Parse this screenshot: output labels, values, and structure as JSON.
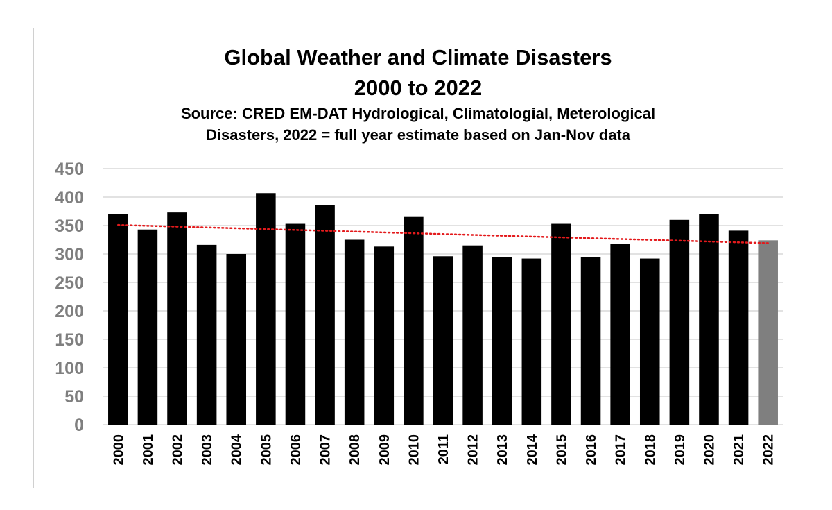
{
  "chart_data": {
    "type": "bar",
    "title": [
      "Global Weather and Climate Disasters",
      "2000 to 2022"
    ],
    "subtitle": [
      "Source: CRED EM-DAT Hydrological, Climatologial, Meterological",
      "Disasters, 2022 = full year estimate based on Jan-Nov data"
    ],
    "xlabel": "",
    "ylabel": "",
    "ylim": [
      0,
      450
    ],
    "yticks": [
      0,
      50,
      100,
      150,
      200,
      250,
      300,
      350,
      400,
      450
    ],
    "grid": true,
    "legend": "none",
    "categories": [
      "2000",
      "2001",
      "2002",
      "2003",
      "2004",
      "2005",
      "2006",
      "2007",
      "2008",
      "2009",
      "2010",
      "2011",
      "2012",
      "2013",
      "2014",
      "2015",
      "2016",
      "2017",
      "2018",
      "2019",
      "2020",
      "2021",
      "2022"
    ],
    "values": [
      370,
      343,
      373,
      316,
      300,
      407,
      353,
      386,
      325,
      313,
      365,
      296,
      315,
      295,
      292,
      353,
      295,
      318,
      292,
      360,
      370,
      341,
      324
    ],
    "bar_colors": [
      "#000000",
      "#000000",
      "#000000",
      "#000000",
      "#000000",
      "#000000",
      "#000000",
      "#000000",
      "#000000",
      "#000000",
      "#000000",
      "#000000",
      "#000000",
      "#000000",
      "#000000",
      "#000000",
      "#000000",
      "#000000",
      "#000000",
      "#000000",
      "#000000",
      "#000000",
      "#7f7f7f"
    ],
    "trendline": {
      "style": "dotted",
      "color": "#e31a1c",
      "start_value": 351,
      "end_value": 319
    }
  },
  "colors": {
    "bar": "#000000",
    "estimate_bar": "#7f7f7f",
    "gridline": "#d9d9d9",
    "tick_label": "#7f7f7f",
    "trendline": "#e31a1c"
  }
}
